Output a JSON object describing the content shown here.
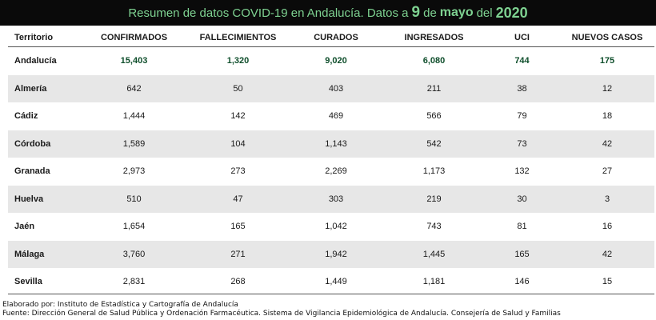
{
  "title": {
    "prefix": "Resumen de datos COVID-19 en Andalucía. Datos a",
    "day": "9",
    "connector": "de",
    "month": "mayo",
    "connector2": "del",
    "year": "2020"
  },
  "colors": {
    "title_background": "#0a0a0a",
    "title_text": "#7ed291",
    "total_row_text": "#0e4e2b",
    "stripe": "#e7e7e7"
  },
  "table": {
    "headers": [
      "Territorio",
      "CONFIRMADOS",
      "FALLECIMIENTOS",
      "CURADOS",
      "INGRESADOS",
      "UCI",
      "NUEVOS CASOS"
    ],
    "rows": [
      [
        "Andalucía",
        "15,403",
        "1,320",
        "9,020",
        "6,080",
        "744",
        "175"
      ],
      [
        "Almería",
        "642",
        "50",
        "403",
        "211",
        "38",
        "12"
      ],
      [
        "Cádiz",
        "1,444",
        "142",
        "469",
        "566",
        "79",
        "18"
      ],
      [
        "Córdoba",
        "1,589",
        "104",
        "1,143",
        "542",
        "73",
        "42"
      ],
      [
        "Granada",
        "2,973",
        "273",
        "2,269",
        "1,173",
        "132",
        "27"
      ],
      [
        "Huelva",
        "510",
        "47",
        "303",
        "219",
        "30",
        "3"
      ],
      [
        "Jaén",
        "1,654",
        "165",
        "1,042",
        "743",
        "81",
        "16"
      ],
      [
        "Málaga",
        "3,760",
        "271",
        "1,942",
        "1,445",
        "165",
        "42"
      ],
      [
        "Sevilla",
        "2,831",
        "268",
        "1,449",
        "1,181",
        "146",
        "15"
      ]
    ]
  },
  "footer": {
    "elaborated": "Elaborado por: Instituto de Estadística y Cartografía de Andalucía",
    "source": "Fuente: Dirección General de Salud Pública y Ordenación Farmacéutica. Sistema de Vigilancia Epidemiológica de Andalucía. Consejería de Salud y Familias"
  }
}
